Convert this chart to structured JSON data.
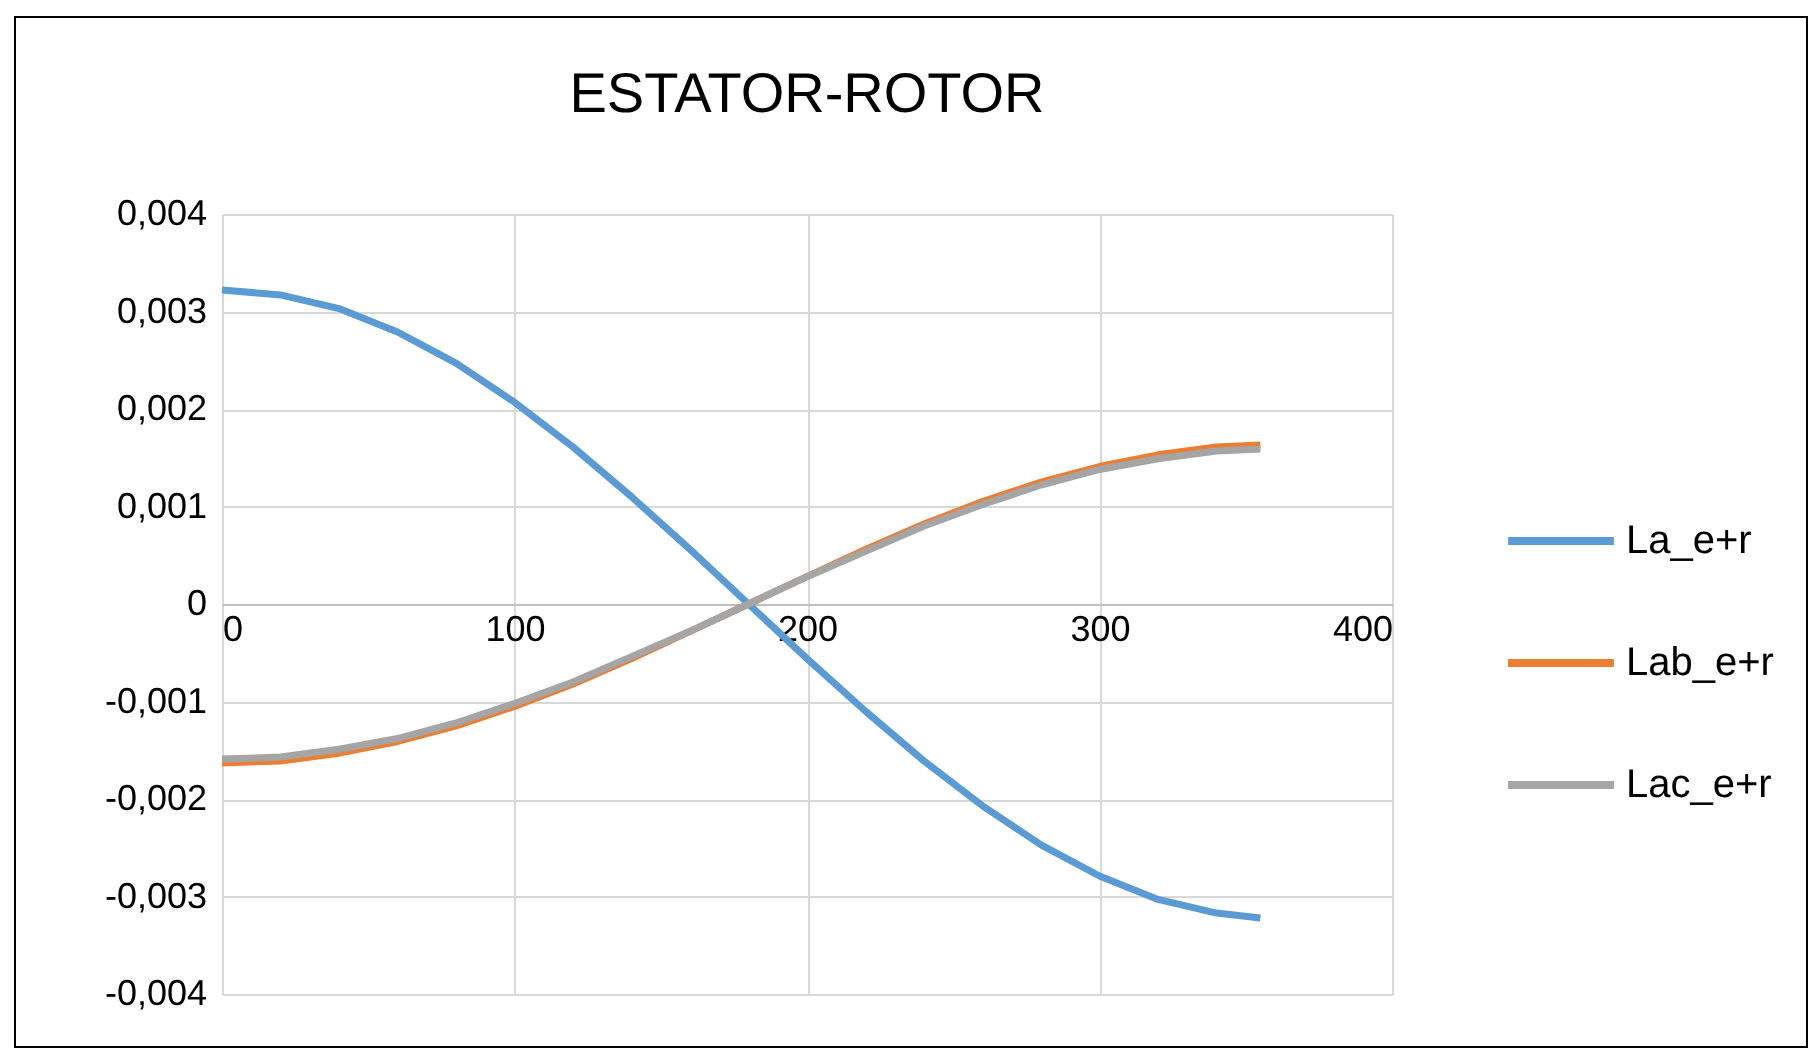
{
  "chart_data": {
    "type": "line",
    "title": "ESTATOR-ROTOR",
    "x": [
      0,
      20,
      40,
      60,
      80,
      100,
      120,
      140,
      160,
      180,
      200,
      220,
      240,
      260,
      280,
      300,
      320,
      340,
      355
    ],
    "series": [
      {
        "name": "La_e+r",
        "color": "#5b9bd5",
        "values": [
          0.00322,
          0.00317,
          0.00303,
          0.00279,
          0.00247,
          0.00207,
          0.00161,
          0.0011,
          0.00056,
          0,
          -0.00056,
          -0.0011,
          -0.00161,
          -0.00207,
          -0.00247,
          -0.00279,
          -0.00303,
          -0.00317,
          -0.00322
        ]
      },
      {
        "name": "Lab_e+r",
        "color": "#ed7d31",
        "values": [
          -0.00163,
          -0.00161,
          -0.00153,
          -0.00141,
          -0.00125,
          -0.00105,
          -0.00082,
          -0.00056,
          -0.00028,
          0,
          0.00028,
          0.00056,
          0.00082,
          0.00105,
          0.00125,
          0.00141,
          0.00153,
          0.00161,
          0.00163
        ]
      },
      {
        "name": "Lac_e+r",
        "color": "#a5a5a5",
        "values": [
          -0.00159,
          -0.00157,
          -0.00149,
          -0.00138,
          -0.00122,
          -0.00102,
          -0.0008,
          -0.00054,
          -0.00028,
          0,
          0.00028,
          0.00054,
          0.0008,
          0.00102,
          0.00122,
          0.00138,
          0.00149,
          0.00157,
          0.00159
        ]
      }
    ],
    "xlim": [
      0,
      400
    ],
    "xticks": [
      0,
      100,
      200,
      300,
      400
    ],
    "ylim": [
      -0.004,
      0.004
    ],
    "yticks": [
      {
        "value": -0.004,
        "label": "-0,004"
      },
      {
        "value": -0.003,
        "label": "-0,003"
      },
      {
        "value": -0.002,
        "label": "-0,002"
      },
      {
        "value": -0.001,
        "label": "-0,001"
      },
      {
        "value": 0,
        "label": "0"
      },
      {
        "value": 0.001,
        "label": "0,001"
      },
      {
        "value": 0.002,
        "label": "0,002"
      },
      {
        "value": 0.003,
        "label": "0,003"
      },
      {
        "value": 0.004,
        "label": "0,004"
      }
    ],
    "grid": true,
    "legend": "right",
    "marker": "none",
    "line_style": "solid"
  }
}
